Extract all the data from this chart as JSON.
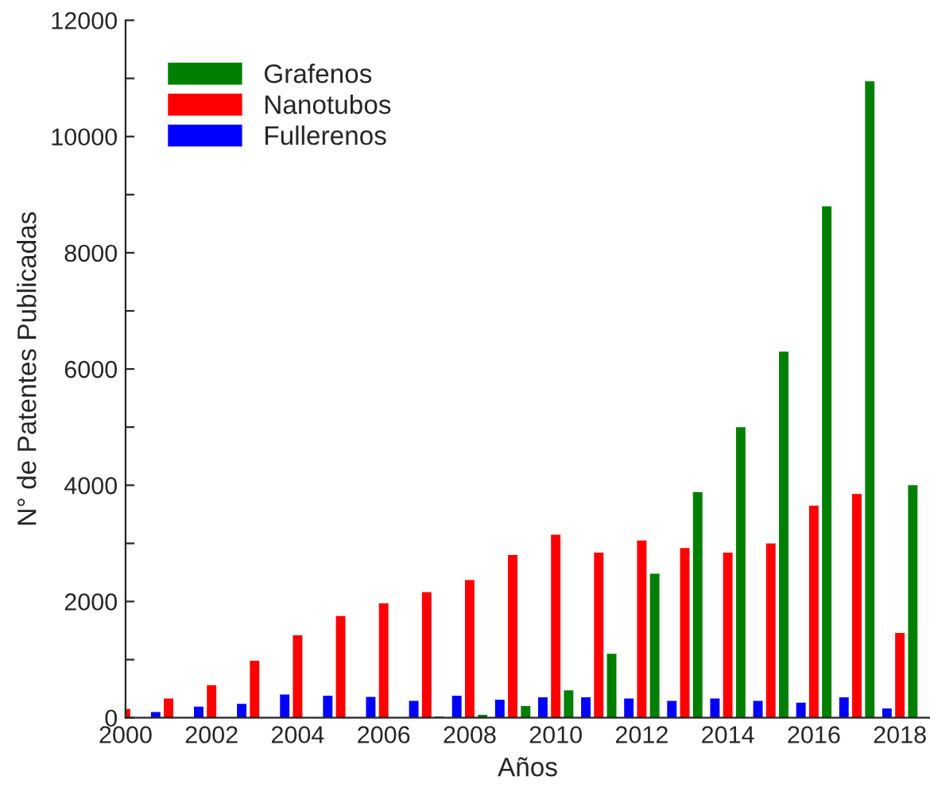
{
  "chart_data": {
    "type": "bar",
    "xlabel": "Años",
    "ylabel": "N° de Patentes Publicadas",
    "x": [
      2000,
      2001,
      2002,
      2003,
      2004,
      2005,
      2006,
      2007,
      2008,
      2009,
      2010,
      2011,
      2012,
      2013,
      2014,
      2015,
      2016,
      2017,
      2018
    ],
    "series": [
      {
        "name": "Grafenos",
        "color": "#007f00",
        "values": [
          0,
          0,
          0,
          0,
          0,
          0,
          0,
          20,
          50,
          200,
          470,
          1100,
          2480,
          3880,
          5000,
          6300,
          8800,
          10950,
          4000
        ]
      },
      {
        "name": "Nanotubos",
        "color": "#ff0000",
        "values": [
          150,
          330,
          560,
          980,
          1420,
          1750,
          1970,
          2160,
          2370,
          2800,
          3150,
          2840,
          3050,
          2920,
          2840,
          3000,
          3650,
          3850,
          1460
        ]
      },
      {
        "name": "Fullerenos",
        "color": "#0000ff",
        "values": [
          null,
          100,
          190,
          240,
          400,
          380,
          360,
          290,
          380,
          310,
          350,
          350,
          330,
          290,
          330,
          290,
          260,
          350,
          160
        ]
      }
    ],
    "xlim": [
      2000,
      2018.7
    ],
    "xticks": [
      2000,
      {
        "value": 2001,
        "label": null
      },
      2002,
      {
        "value": 2003,
        "label": null
      },
      2004,
      {
        "value": 2005,
        "label": null
      },
      2006,
      {
        "value": 2007,
        "label": null
      },
      2008,
      {
        "value": 2009,
        "label": null
      },
      2010,
      {
        "value": 2011,
        "label": null
      },
      2012,
      {
        "value": 2013,
        "label": null
      },
      2014,
      {
        "value": 2015,
        "label": null
      },
      2016,
      {
        "value": 2017,
        "label": null
      },
      2018
    ],
    "ylim": [
      0,
      12000
    ],
    "yticks": [
      0,
      {
        "value": 1000,
        "label": null
      },
      2000,
      {
        "value": 3000,
        "label": null
      },
      4000,
      {
        "value": 5000,
        "label": null
      },
      6000,
      {
        "value": 7000,
        "label": null
      },
      8000,
      {
        "value": 9000,
        "label": null
      },
      10000,
      {
        "value": 11000,
        "label": null
      },
      12000
    ],
    "legend": "top left",
    "grid": false
  }
}
